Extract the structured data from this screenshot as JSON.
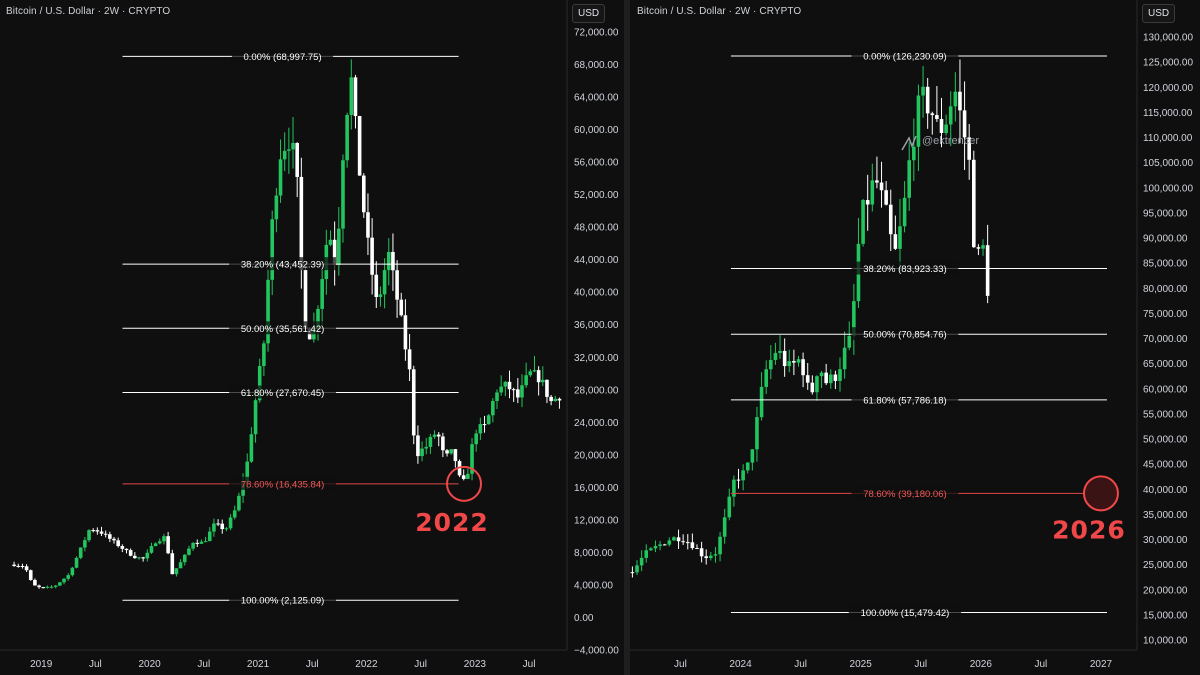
{
  "colors": {
    "background": "#0f0f0f",
    "up_candle": "#22c55e",
    "down_candle": "#ffffff",
    "fib_line": "#ffffff",
    "fib_highlight": "#e04848",
    "annotation": "#f04848"
  },
  "icons": [
    "chart-logo-icon"
  ],
  "watermark": "@ektrencer",
  "chart_data": [
    {
      "type": "candlestick",
      "title": "Bitcoin / U.S. Dollar · 2W · CRYPTO",
      "currency_button": "USD",
      "ylim": [
        -5000,
        74000
      ],
      "y_ticks": [
        72000,
        68000,
        64000,
        60000,
        56000,
        52000,
        48000,
        44000,
        40000,
        36000,
        32000,
        28000,
        24000,
        20000,
        16000,
        12000,
        8000,
        4000,
        0,
        -4000
      ],
      "y_tick_labels": [
        "72,000.00",
        "68,000.00",
        "64,000.00",
        "60,000.00",
        "56,000.00",
        "52,000.00",
        "48,000.00",
        "44,000.00",
        "40,000.00",
        "36,000.00",
        "32,000.00",
        "28,000.00",
        "24,000.00",
        "20,000.00",
        "16,000.00",
        "12,000.00",
        "8,000.00",
        "4,000.00",
        "0.00",
        "−4,000.00"
      ],
      "x_ticks": [
        "2019",
        "Jul",
        "2020",
        "Jul",
        "2021",
        "Jul",
        "2022",
        "Jul",
        "2023",
        "Jul"
      ],
      "x_tick_dates": [
        2019.0,
        2019.5,
        2020.0,
        2020.5,
        2021.0,
        2021.5,
        2022.0,
        2022.5,
        2023.0,
        2023.5
      ],
      "x_range": [
        2018.62,
        2023.85
      ],
      "fib_levels": [
        {
          "ratio": 0.0,
          "price": 68997.75,
          "label": "0.00% (68,997.75)",
          "highlight": false
        },
        {
          "ratio": 0.382,
          "price": 43452.39,
          "label": "38.20% (43,452.39)",
          "highlight": false
        },
        {
          "ratio": 0.5,
          "price": 35561.42,
          "label": "50.00% (35,561.42)",
          "highlight": false
        },
        {
          "ratio": 0.618,
          "price": 27670.45,
          "label": "61.80% (27,670.45)",
          "highlight": false
        },
        {
          "ratio": 0.786,
          "price": 16435.84,
          "label": "78.60% (16,435.84)",
          "highlight": true
        },
        {
          "ratio": 1.0,
          "price": 2125.09,
          "label": "100.00% (2,125.09)",
          "highlight": false
        }
      ],
      "fib_x_range": [
        2019.75,
        2022.85
      ],
      "price_series": {
        "t": [
          2018.75,
          2018.85,
          2018.92,
          2019.0,
          2019.12,
          2019.25,
          2019.35,
          2019.45,
          2019.55,
          2019.65,
          2019.75,
          2019.85,
          2019.95,
          2020.05,
          2020.15,
          2020.2,
          2020.3,
          2020.4,
          2020.5,
          2020.6,
          2020.7,
          2020.8,
          2020.9,
          2021.0,
          2021.05,
          2021.12,
          2021.2,
          2021.28,
          2021.35,
          2021.42,
          2021.5,
          2021.58,
          2021.65,
          2021.72,
          2021.8,
          2021.86,
          2021.92,
          2022.0,
          2022.1,
          2022.2,
          2022.3,
          2022.4,
          2022.45,
          2022.55,
          2022.65,
          2022.72,
          2022.8,
          2022.87,
          2022.92,
          2023.0,
          2023.1,
          2023.2,
          2023.3,
          2023.4,
          2023.5,
          2023.6,
          2023.7,
          2023.8
        ],
        "p": [
          6500,
          6300,
          4000,
          3600,
          3800,
          5200,
          8000,
          11000,
          10500,
          9500,
          8500,
          7500,
          7200,
          9300,
          10000,
          5200,
          7000,
          9300,
          9200,
          11500,
          10800,
          13500,
          19000,
          29000,
          33000,
          47000,
          57000,
          59000,
          56000,
          37000,
          34000,
          41000,
          48000,
          43000,
          61000,
          66000,
          57000,
          47000,
          38000,
          45000,
          38000,
          30000,
          20000,
          21000,
          23000,
          19500,
          20500,
          16500,
          16800,
          23000,
          23500,
          28000,
          28500,
          27000,
          30000,
          29500,
          26500,
          27500
        ]
      },
      "annotation": {
        "text": "2022",
        "circle_price": 16435.84,
        "circle_date": 2022.9
      }
    },
    {
      "type": "candlestick",
      "title": "Bitcoin / U.S. Dollar · 2W · CRYPTO",
      "currency_button": "USD",
      "ylim": [
        5000,
        131000
      ],
      "y_ticks": [
        130000,
        125000,
        120000,
        115000,
        110000,
        105000,
        100000,
        95000,
        90000,
        85000,
        80000,
        75000,
        70000,
        65000,
        60000,
        55000,
        50000,
        45000,
        40000,
        35000,
        30000,
        25000,
        20000,
        15000,
        10000
      ],
      "y_tick_labels": [
        "130,000.00",
        "125,000.00",
        "120,000.00",
        "115,000.00",
        "110,000.00",
        "105,000.00",
        "100,000.00",
        "95,000.00",
        "90,000.00",
        "85,000.00",
        "80,000.00",
        "75,000.00",
        "70,000.00",
        "65,000.00",
        "60,000.00",
        "55,000.00",
        "50,000.00",
        "45,000.00",
        "40,000.00",
        "35,000.00",
        "30,000.00",
        "25,000.00",
        "20,000.00",
        "15,000.00",
        "10,000.00"
      ],
      "x_ticks": [
        "Jul",
        "2024",
        "Jul",
        "2025",
        "Jul",
        "2026",
        "Jul",
        "2027"
      ],
      "x_tick_dates": [
        2023.5,
        2024.0,
        2024.5,
        2025.0,
        2025.5,
        2026.0,
        2026.5,
        2027.0
      ],
      "x_range": [
        2023.08,
        2027.3
      ],
      "fib_levels": [
        {
          "ratio": 0.0,
          "price": 126230.09,
          "label": "0.00% (126,230.09)",
          "highlight": false
        },
        {
          "ratio": 0.382,
          "price": 83923.33,
          "label": "38.20% (83,923.33)",
          "highlight": false
        },
        {
          "ratio": 0.5,
          "price": 70854.76,
          "label": "50.00% (70,854.76)",
          "highlight": false
        },
        {
          "ratio": 0.618,
          "price": 57786.18,
          "label": "61.80% (57,786.18)",
          "highlight": false
        },
        {
          "ratio": 0.786,
          "price": 39180.06,
          "label": "78.60% (39,180.06)",
          "highlight": true
        },
        {
          "ratio": 1.0,
          "price": 15479.42,
          "label": "100.00% (15,479.42)",
          "highlight": false
        }
      ],
      "fib_x_range": [
        2023.92,
        2027.05
      ],
      "price_series": {
        "t": [
          2023.1,
          2023.2,
          2023.3,
          2023.4,
          2023.5,
          2023.6,
          2023.7,
          2023.8,
          2023.88,
          2023.95,
          2024.05,
          2024.12,
          2024.2,
          2024.3,
          2024.4,
          2024.5,
          2024.58,
          2024.65,
          2024.72,
          2024.8,
          2024.86,
          2024.92,
          2025.0,
          2025.05,
          2025.12,
          2025.2,
          2025.28,
          2025.35,
          2025.42,
          2025.5,
          2025.58,
          2025.65,
          2025.72,
          2025.78,
          2025.85,
          2025.9,
          2025.95,
          2026.0,
          2026.04,
          2026.08
        ],
        "p": [
          23500,
          27000,
          28500,
          30000,
          30500,
          29000,
          26500,
          27500,
          35000,
          42000,
          43500,
          51000,
          63000,
          68000,
          64000,
          66000,
          58000,
          65000,
          61000,
          63000,
          67000,
          70000,
          94000,
          97000,
          102000,
          96000,
          86000,
          94000,
          108000,
          118000,
          116000,
          111000,
          114000,
          120000,
          112000,
          106000,
          87000,
          86000,
          90000,
          66000
        ]
      },
      "annotation": {
        "text": "2026",
        "circle_price": 39180.06,
        "circle_date": 2027.0
      }
    }
  ]
}
